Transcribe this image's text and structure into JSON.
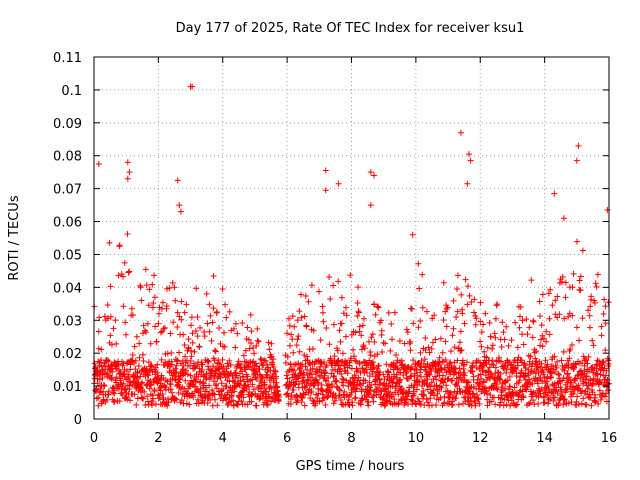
{
  "chart_data": {
    "type": "scatter",
    "title": "Day 177 of 2025, Rate Of TEC Index for receiver ksu1",
    "xlabel": "GPS time / hours",
    "ylabel": "ROTI / TECUs",
    "xlim": [
      0,
      16
    ],
    "ylim": [
      0,
      0.11
    ],
    "grid": true,
    "marker": "+",
    "color": "#ff0000",
    "x_ticks": [
      "0",
      "2",
      "4",
      "6",
      "8",
      "10",
      "12",
      "14",
      "16"
    ],
    "y_ticks": [
      "0",
      "0.01",
      "0.02",
      "0.03",
      "0.04",
      "0.05",
      "0.06",
      "0.07",
      "0.08",
      "0.09",
      "0.1",
      "0.11"
    ],
    "envelope_hours": [
      0,
      0.5,
      1,
      1.5,
      2,
      2.5,
      3,
      3.5,
      4,
      4.5,
      5,
      5.5,
      5.7,
      5.9,
      6,
      6.5,
      7,
      7.5,
      8,
      8.5,
      9,
      9.5,
      10,
      10.5,
      11,
      11.5,
      12,
      12.5,
      13,
      13.5,
      14,
      14.5,
      15,
      15.5,
      16
    ],
    "envelope_max_roti": [
      0.045,
      0.055,
      0.063,
      0.06,
      0.05,
      0.042,
      0.04,
      0.045,
      0.045,
      0.04,
      0.03,
      0.025,
      0.01,
      0.0,
      0.04,
      0.045,
      0.05,
      0.05,
      0.045,
      0.05,
      0.04,
      0.03,
      0.05,
      0.04,
      0.045,
      0.05,
      0.045,
      0.035,
      0.035,
      0.045,
      0.05,
      0.06,
      0.06,
      0.055,
      0.06
    ],
    "gap_hours": [
      5.75,
      5.95
    ],
    "notable_points": [
      {
        "x": 0.15,
        "y": 0.0775
      },
      {
        "x": 1.05,
        "y": 0.078
      },
      {
        "x": 1.1,
        "y": 0.075
      },
      {
        "x": 1.05,
        "y": 0.073
      },
      {
        "x": 2.6,
        "y": 0.0725
      },
      {
        "x": 2.65,
        "y": 0.065
      },
      {
        "x": 2.7,
        "y": 0.063
      },
      {
        "x": 3.0,
        "y": 0.101
      },
      {
        "x": 3.05,
        "y": 0.101
      },
      {
        "x": 7.2,
        "y": 0.0755
      },
      {
        "x": 7.2,
        "y": 0.0695
      },
      {
        "x": 7.6,
        "y": 0.0715
      },
      {
        "x": 8.6,
        "y": 0.075
      },
      {
        "x": 8.6,
        "y": 0.065
      },
      {
        "x": 8.7,
        "y": 0.074
      },
      {
        "x": 9.9,
        "y": 0.056
      },
      {
        "x": 11.4,
        "y": 0.087
      },
      {
        "x": 11.65,
        "y": 0.0805
      },
      {
        "x": 11.7,
        "y": 0.0785
      },
      {
        "x": 11.6,
        "y": 0.0715
      },
      {
        "x": 14.3,
        "y": 0.0685
      },
      {
        "x": 15.05,
        "y": 0.083
      },
      {
        "x": 15.0,
        "y": 0.0785
      },
      {
        "x": 14.6,
        "y": 0.061
      },
      {
        "x": 15.95,
        "y": 0.0635
      }
    ]
  }
}
